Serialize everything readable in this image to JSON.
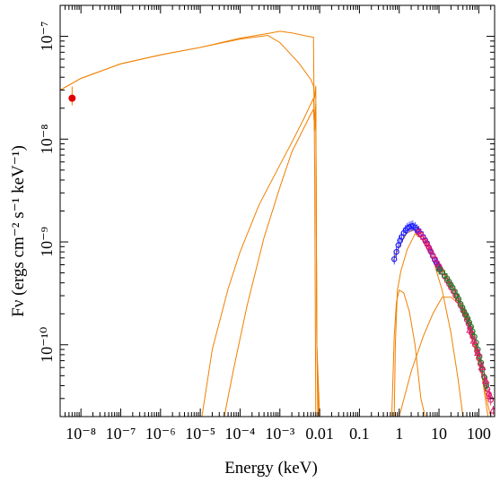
{
  "chart_data": {
    "type": "line",
    "title": "",
    "xlabel": "Energy (keV)",
    "ylabel": "Fν (ergs cm⁻² s⁻¹ keV⁻¹)",
    "xscale": "log",
    "yscale": "log",
    "xlim": [
      3e-09,
      250
    ],
    "ylim": [
      2e-11,
      2e-07
    ],
    "grid": false,
    "legend": "none",
    "x_tick_labels": [
      "10⁻⁸",
      "10⁻⁷",
      "10⁻⁶",
      "10⁻⁵",
      "10⁻⁴",
      "10⁻³",
      "0.01",
      "0.1",
      "1",
      "10",
      "100"
    ],
    "x_tick_values": [
      1e-08,
      1e-07,
      1e-06,
      1e-05,
      0.0001,
      0.001,
      0.01,
      0.1,
      1,
      10,
      100
    ],
    "y_tick_labels": [
      "10⁻¹⁰",
      "10⁻⁹",
      "10⁻⁸",
      "10⁻⁷"
    ],
    "y_tick_values": [
      1e-10,
      1e-09,
      1e-08,
      1e-07
    ],
    "colors": {
      "model": "#f08000",
      "radio": "#e00000",
      "xray_soft": "#1a1aff",
      "xray_mid": "#e0186e",
      "xray_hard": "#2a7a2a"
    },
    "model_curves": [
      {
        "name": "",
        "points": [
          [
            3e-09,
            3e-08
          ],
          [
            1e-08,
            3.9e-08
          ],
          [
            1e-07,
            5.4e-08
          ],
          [
            1e-06,
            6.6e-08
          ],
          [
            1e-05,
            7.8e-08
          ],
          [
            0.0001,
            9.6e-08
          ],
          [
            0.0006,
            1.08e-07
          ],
          [
            0.001,
            1.12e-07
          ],
          [
            0.002,
            1.08e-07
          ],
          [
            0.005,
            1e-07
          ],
          [
            0.007,
            9.8e-08
          ],
          [
            0.0075,
            5e-09
          ],
          [
            0.008,
            2e-11
          ]
        ]
      },
      {
        "name": "",
        "points": [
          [
            3e-09,
            3e-08
          ],
          [
            1e-08,
            3.9e-08
          ],
          [
            1e-07,
            5.4e-08
          ],
          [
            1e-06,
            6.6e-08
          ],
          [
            1e-05,
            7.8e-08
          ],
          [
            0.0001,
            9.4e-08
          ],
          [
            0.0005,
            1.02e-07
          ],
          [
            0.001,
            8.7e-08
          ],
          [
            0.003,
            5.5e-08
          ],
          [
            0.006,
            3.8e-08
          ],
          [
            0.007,
            3.3e-08
          ],
          [
            0.0075,
            2.5e-08
          ],
          [
            0.008,
            3.3e-08
          ],
          [
            0.0085,
            1e-10
          ],
          [
            0.009,
            2e-11
          ]
        ]
      },
      {
        "name": "",
        "points": [
          [
            1.1e-05,
            2e-11
          ],
          [
            2e-05,
            9e-11
          ],
          [
            5e-05,
            3.5e-10
          ],
          [
            0.0001,
            8e-10
          ],
          [
            0.0003,
            2.3e-09
          ],
          [
            0.001,
            5.6e-09
          ],
          [
            0.002,
            9.3e-09
          ],
          [
            0.004,
            1.58e-08
          ],
          [
            0.006,
            2.2e-08
          ],
          [
            0.007,
            2.5e-08
          ],
          [
            0.0075,
            1.5e-08
          ],
          [
            0.008,
            2.2e-08
          ],
          [
            0.0085,
            1e-10
          ],
          [
            0.0095,
            2e-11
          ]
        ]
      },
      {
        "name": "",
        "points": [
          [
            4e-05,
            2e-11
          ],
          [
            7e-05,
            6e-11
          ],
          [
            0.00015,
            2.4e-10
          ],
          [
            0.0004,
            1.1e-09
          ],
          [
            0.001,
            3.4e-09
          ],
          [
            0.002,
            7.5e-09
          ],
          [
            0.004,
            1.28e-08
          ],
          [
            0.006,
            1.75e-08
          ],
          [
            0.007,
            1.95e-08
          ],
          [
            0.0075,
            1.2e-08
          ],
          [
            0.008,
            1.9e-08
          ],
          [
            0.0085,
            1e-10
          ],
          [
            0.01,
            2e-11
          ]
        ]
      },
      {
        "name": "",
        "points": [
          [
            0.65,
            2e-11
          ],
          [
            0.75,
            1.2e-10
          ],
          [
            0.85,
            2.6e-10
          ],
          [
            1.0,
            3.4e-10
          ],
          [
            1.3,
            3.2e-10
          ],
          [
            1.8,
            2.1e-10
          ],
          [
            2.5,
            1e-10
          ],
          [
            3.5,
            3e-11
          ],
          [
            4.5,
            2e-11
          ]
        ]
      },
      {
        "name": "",
        "points": [
          [
            0.75,
            2e-11
          ],
          [
            0.8,
            1e-10
          ],
          [
            0.9,
            3.4e-10
          ],
          [
            1.1,
            5.2e-10
          ],
          [
            1.6,
            8.5e-10
          ],
          [
            2.5,
            1.2e-09
          ],
          [
            4,
            1.05e-09
          ],
          [
            7,
            6.8e-10
          ],
          [
            12,
            3.4e-10
          ],
          [
            20,
            1.3e-10
          ],
          [
            30,
            4.7e-11
          ],
          [
            40,
            2e-11
          ]
        ]
      },
      {
        "name": "",
        "points": [
          [
            1.0,
            2e-11
          ],
          [
            2,
            5.5e-11
          ],
          [
            4,
            1.2e-10
          ],
          [
            7,
            2e-10
          ],
          [
            12,
            2.9e-10
          ],
          [
            20,
            2.9e-10
          ],
          [
            40,
            2.3e-10
          ],
          [
            70,
            1.3e-10
          ],
          [
            120,
            5e-11
          ],
          [
            170,
            2e-11
          ]
        ]
      },
      {
        "name": "",
        "points": [
          [
            0.7,
            6.5e-10
          ],
          [
            1,
            9e-10
          ],
          [
            1.5,
            1.2e-09
          ],
          [
            2.2,
            1.32e-09
          ],
          [
            3.5,
            1.2e-09
          ],
          [
            5,
            1e-09
          ],
          [
            8,
            7.3e-10
          ],
          [
            12,
            5.4e-10
          ],
          [
            20,
            3.9e-10
          ],
          [
            30,
            2.9e-10
          ],
          [
            50,
            1.75e-10
          ],
          [
            80,
            9e-11
          ],
          [
            120,
            5e-11
          ],
          [
            170,
            2.6e-11
          ],
          [
            200,
            2e-11
          ]
        ]
      }
    ],
    "data_series": [
      {
        "name": "",
        "marker": "filled-circle",
        "color": "radio",
        "x": [
          6e-09
        ],
        "y": [
          2.5e-08
        ]
      },
      {
        "name": "",
        "marker": "circle",
        "color": "xray_soft",
        "x": [
          0.75,
          0.85,
          0.95,
          1.05,
          1.15,
          1.3,
          1.45,
          1.6,
          1.8,
          2.0,
          2.2,
          2.5,
          2.8,
          3.1,
          3.5,
          4.0,
          4.5,
          5.0,
          5.6,
          6.3,
          7.0,
          7.8,
          8.6,
          9.5,
          10.5
        ],
        "y": [
          6.8e-10,
          8e-10,
          9.3e-10,
          1.03e-09,
          1.12e-09,
          1.22e-09,
          1.3e-09,
          1.36e-09,
          1.4e-09,
          1.42e-09,
          1.43e-09,
          1.38e-09,
          1.32e-09,
          1.27e-09,
          1.2e-09,
          1.12e-09,
          1.04e-09,
          9.7e-10,
          8.8e-10,
          8e-10,
          7.3e-10,
          6.7e-10,
          6.3e-10,
          5.9e-10,
          5.5e-10
        ]
      },
      {
        "name": "",
        "marker": "circle",
        "color": "xray_mid",
        "x": [
          3,
          3.5,
          4,
          4.5,
          5,
          5.5,
          6,
          7,
          8,
          9,
          10,
          11,
          12,
          14,
          16,
          18,
          20,
          23,
          26,
          30,
          35,
          40,
          45,
          50,
          55,
          60,
          65,
          70,
          80,
          90,
          100,
          110,
          120,
          135,
          150,
          165,
          180,
          200
        ],
        "y": [
          1.25e-09,
          1.18e-09,
          1.1e-09,
          1.02e-09,
          9.5e-10,
          8.9e-10,
          8.3e-10,
          7.4e-10,
          6.8e-10,
          6.2e-10,
          5.8e-10,
          5.4e-10,
          5.1e-10,
          4.6e-10,
          4.2e-10,
          3.9e-10,
          3.6e-10,
          3.3e-10,
          3e-10,
          2.7e-10,
          2.4e-10,
          2.15e-10,
          1.95e-10,
          1.75e-10,
          1.6e-10,
          1.45e-10,
          1.3e-10,
          1.2e-10,
          1e-10,
          8.7e-11,
          7.4e-11,
          6.5e-11,
          5.7e-11,
          4.9e-11,
          4.2e-11,
          3.7e-11,
          3.3e-11,
          2.9e-11
        ]
      },
      {
        "name": "",
        "marker": "circle",
        "color": "xray_hard",
        "x": [
          10,
          12,
          14,
          16,
          18,
          20,
          22,
          25,
          28,
          31,
          35,
          39,
          43,
          48,
          53,
          58,
          64,
          70,
          78,
          86,
          95,
          105,
          115,
          125,
          140,
          155
        ],
        "y": [
          5.4e-10,
          5.1e-10,
          4.7e-10,
          4.4e-10,
          4.1e-10,
          3.8e-10,
          3.6e-10,
          3.3e-10,
          3e-10,
          2.8e-10,
          2.5e-10,
          2.3e-10,
          2.1e-10,
          1.95e-10,
          1.8e-10,
          1.65e-10,
          1.5e-10,
          1.35e-10,
          1.2e-10,
          1.05e-10,
          9e-11,
          7.7e-11,
          6.7e-11,
          5.8e-11,
          4.8e-11,
          4e-11
        ]
      },
      {
        "name": "",
        "marker": "triangle-open",
        "color": "xray_mid",
        "x": [
          60,
          75,
          95,
          120,
          150,
          190,
          230
        ],
        "y": [
          1.4e-10,
          1.1e-10,
          8.4e-11,
          6.1e-11,
          4.5e-11,
          3.2e-11,
          2.3e-11
        ]
      }
    ]
  }
}
